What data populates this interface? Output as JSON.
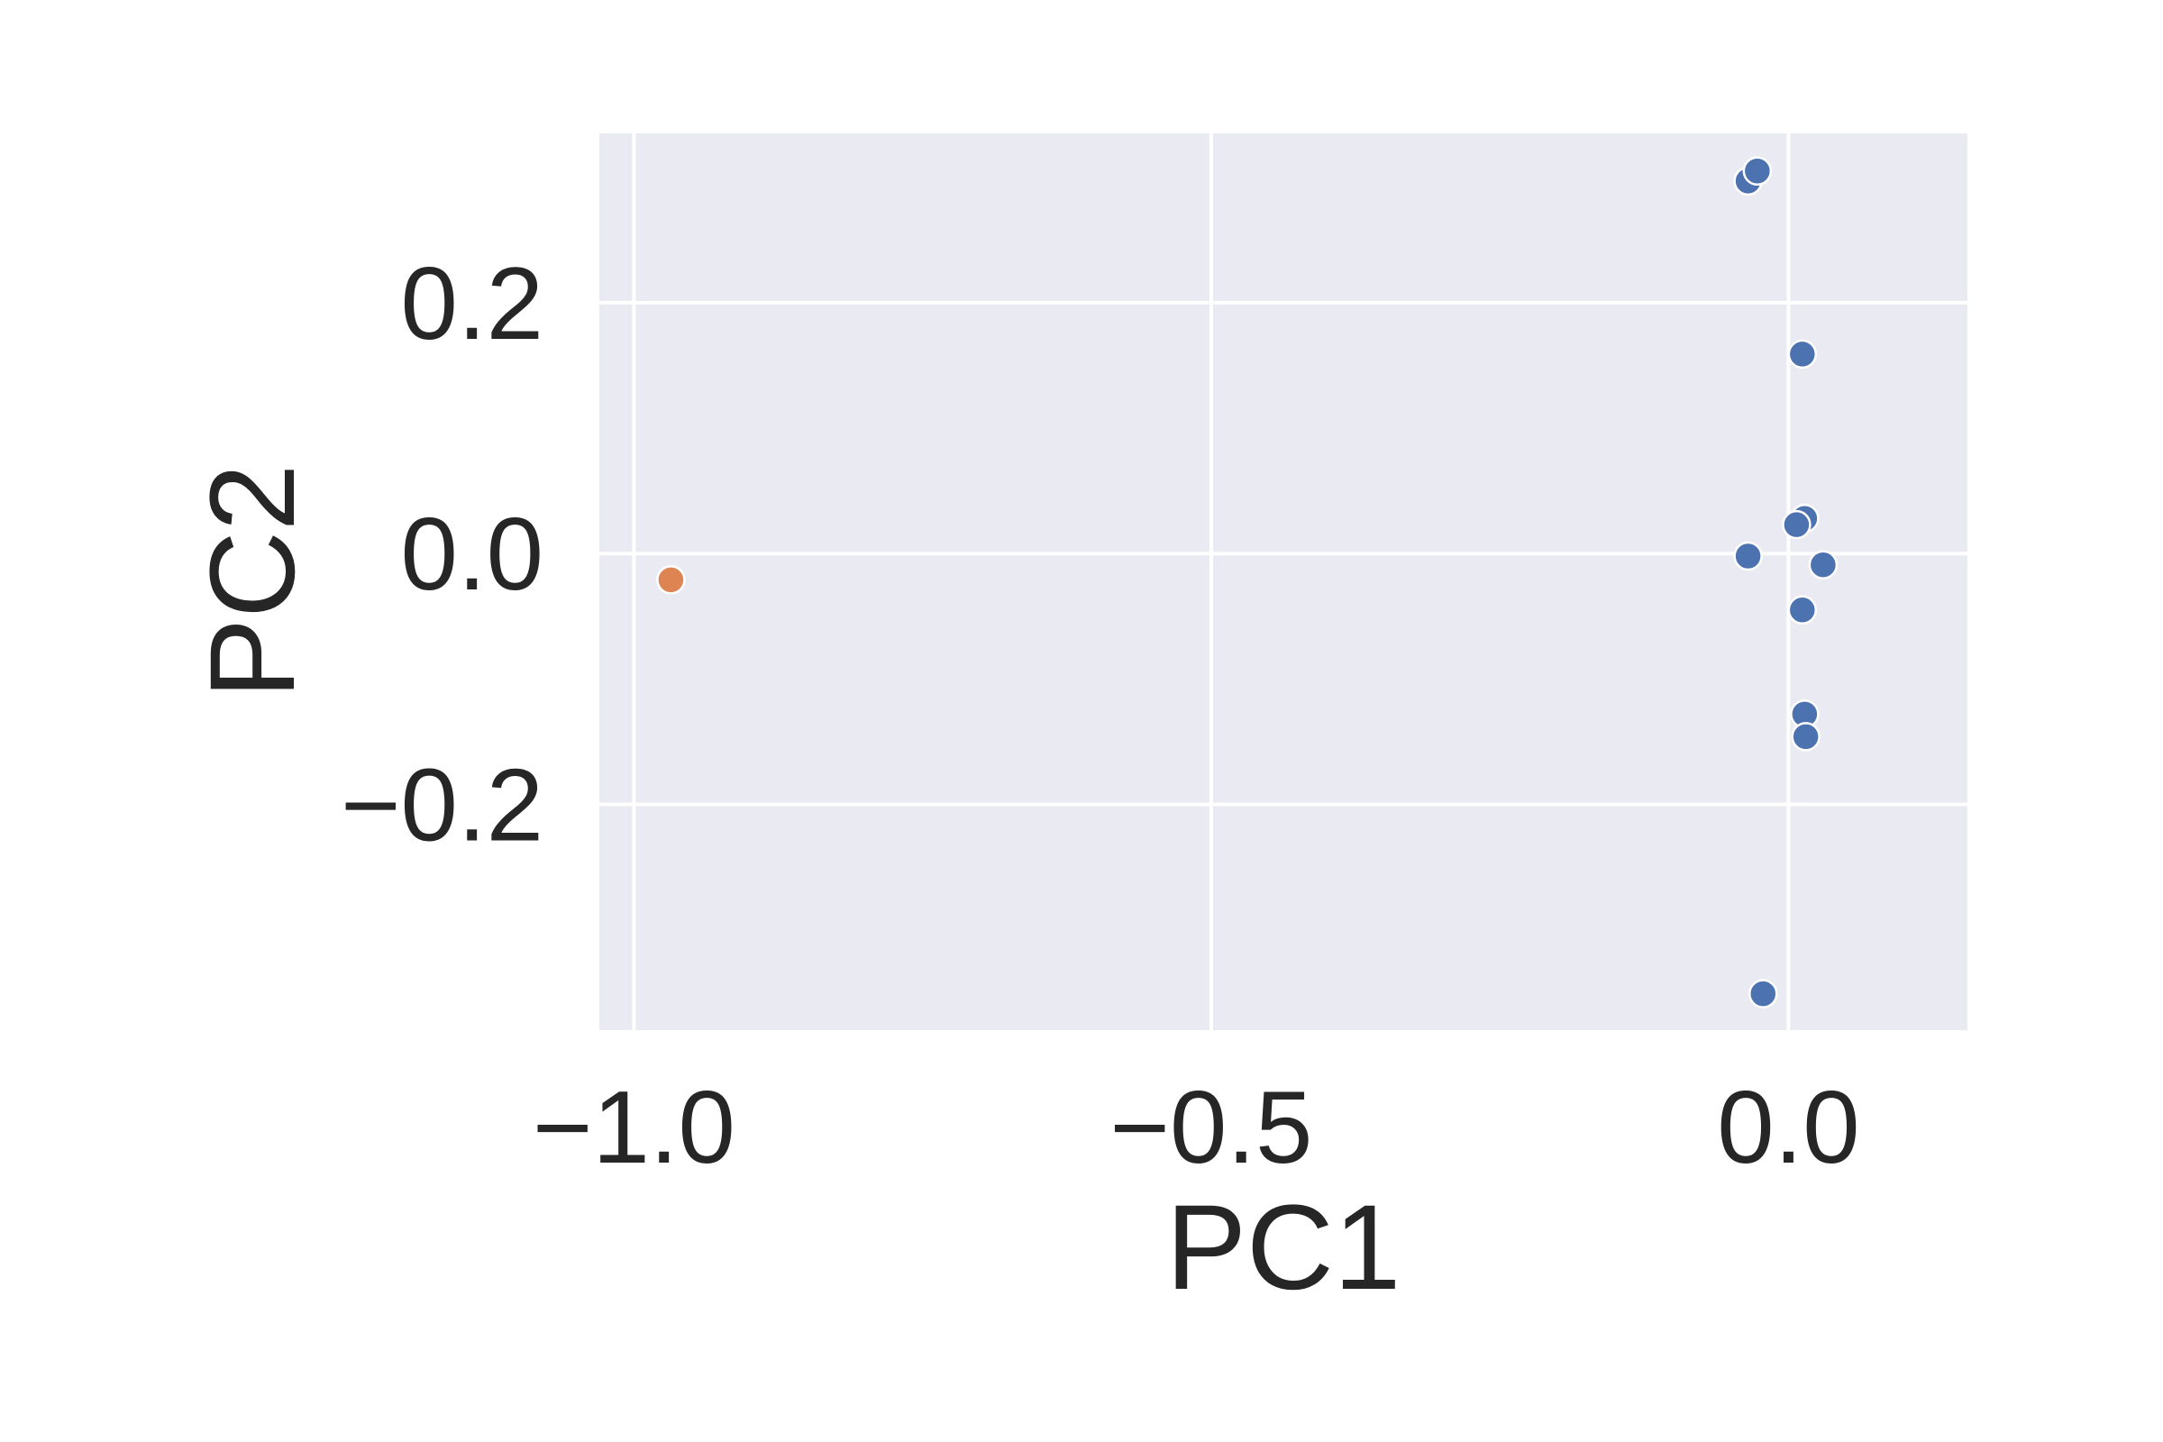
{
  "chart_data": {
    "type": "scatter",
    "title": "",
    "xlabel": "PC1",
    "ylabel": "PC2",
    "xlim": [
      -1.03,
      0.155
    ],
    "ylim": [
      -0.38,
      0.335
    ],
    "xticks": [
      -1.0,
      -0.5,
      0.0
    ],
    "xtick_labels": [
      "−1.0",
      "−0.5",
      "0.0"
    ],
    "yticks": [
      -0.2,
      0.0,
      0.2
    ],
    "ytick_labels": [
      "−0.2",
      "0.0",
      "0.2"
    ],
    "grid": true,
    "colors": {
      "background": "#eaeaf2",
      "grid": "#ffffff",
      "text": "#262626",
      "series_blue": "#4c72b0",
      "series_orange": "#dd8452",
      "marker_edge": "#ffffff"
    },
    "series": [
      {
        "color": "#4c72b0",
        "points": [
          {
            "x": -0.035,
            "y": 0.297
          },
          {
            "x": -0.027,
            "y": 0.305
          },
          {
            "x": 0.012,
            "y": 0.159
          },
          {
            "x": 0.014,
            "y": 0.028
          },
          {
            "x": 0.007,
            "y": 0.023
          },
          {
            "x": -0.035,
            "y": -0.002
          },
          {
            "x": 0.03,
            "y": -0.009
          },
          {
            "x": 0.012,
            "y": -0.045
          },
          {
            "x": 0.014,
            "y": -0.128
          },
          {
            "x": 0.015,
            "y": -0.146
          },
          {
            "x": -0.022,
            "y": -0.351
          }
        ]
      },
      {
        "color": "#dd8452",
        "points": [
          {
            "x": -0.968,
            "y": -0.021
          }
        ]
      }
    ]
  }
}
